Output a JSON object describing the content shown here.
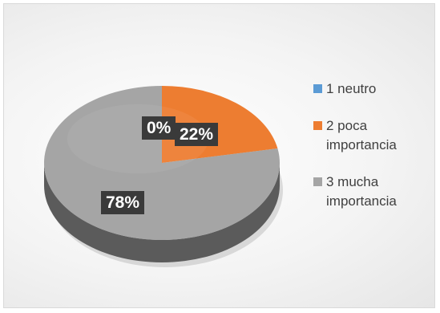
{
  "chart_data": {
    "type": "pie",
    "categories": [
      "1 neutro",
      "2 poca importancia",
      "3 mucha importancia"
    ],
    "values": [
      0,
      22,
      78
    ],
    "data_labels": [
      "0%",
      "22%",
      "78%"
    ],
    "colors": [
      "#5b9bd5",
      "#ed7d31",
      "#a5a5a5"
    ],
    "style": "3d",
    "legend_position": "right"
  }
}
